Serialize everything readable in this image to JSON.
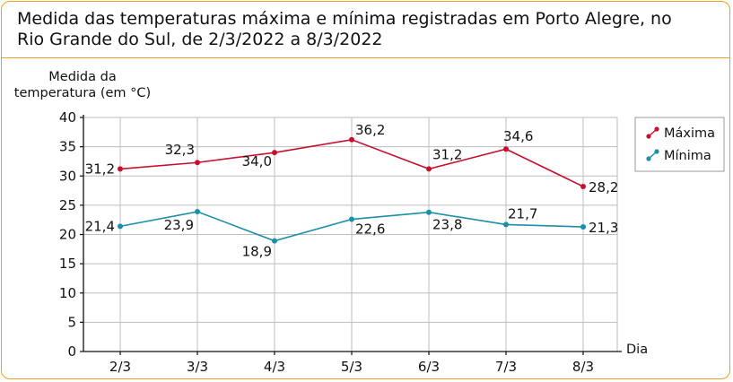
{
  "chart_data": {
    "type": "line",
    "title": "Medida das temperaturas máxima e mínima registradas em Porto Alegre, no Rio Grande do Sul, de 2/3/2022 a 8/3/2022",
    "title_lines": [
      "Medida das temperaturas máxima e mínima registradas em Porto Alegre, no",
      "Rio Grande do Sul, de 2/3/2022 a 8/3/2022"
    ],
    "ylabel_lines": [
      "Medida da",
      "temperatura (em °C)"
    ],
    "xlabel": "Dia",
    "categories": [
      "2/3",
      "3/3",
      "4/3",
      "5/3",
      "6/3",
      "7/3",
      "8/3"
    ],
    "ylim": [
      0,
      40
    ],
    "yticks": [
      0,
      5,
      10,
      15,
      20,
      25,
      30,
      35,
      40
    ],
    "grid": true,
    "legend_position": "right",
    "series": [
      {
        "name": "Máxima",
        "color": "#c8102e",
        "values": [
          31.2,
          32.3,
          34.0,
          36.2,
          31.2,
          34.6,
          28.2
        ],
        "labels": [
          "31,2",
          "32,3",
          "34,0",
          "36,2",
          "31,2",
          "34,6",
          "28,2"
        ]
      },
      {
        "name": "Mínima",
        "color": "#1a8fa8",
        "values": [
          21.4,
          23.9,
          18.9,
          22.6,
          23.8,
          21.7,
          21.3
        ],
        "labels": [
          "21,4",
          "23,9",
          "18,9",
          "22,6",
          "23,8",
          "21,7",
          "21,3"
        ]
      }
    ]
  }
}
